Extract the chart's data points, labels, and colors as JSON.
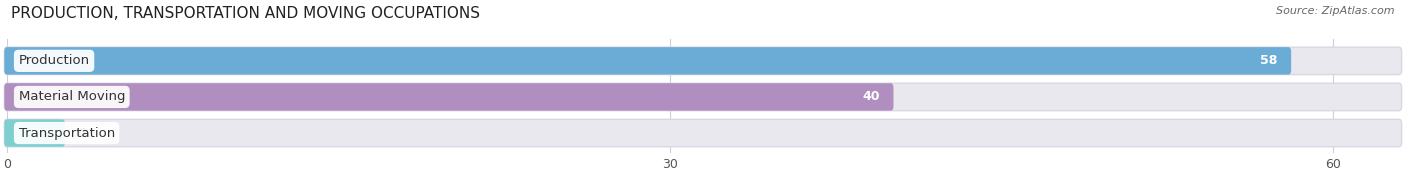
{
  "title": "PRODUCTION, TRANSPORTATION AND MOVING OCCUPATIONS",
  "source": "Source: ZipAtlas.com",
  "categories": [
    "Production",
    "Material Moving",
    "Transportation"
  ],
  "values": [
    58,
    40,
    0
  ],
  "bar_colors": [
    "#6aacd6",
    "#b08ec0",
    "#7ecfcf"
  ],
  "background_color": "#ffffff",
  "bar_bg_color": "#e8e8ee",
  "xlim": [
    0,
    63
  ],
  "xticks": [
    0,
    30,
    60
  ],
  "title_fontsize": 11,
  "label_fontsize": 9.5,
  "value_fontsize": 9,
  "figsize": [
    14.06,
    1.96
  ],
  "dpi": 100
}
